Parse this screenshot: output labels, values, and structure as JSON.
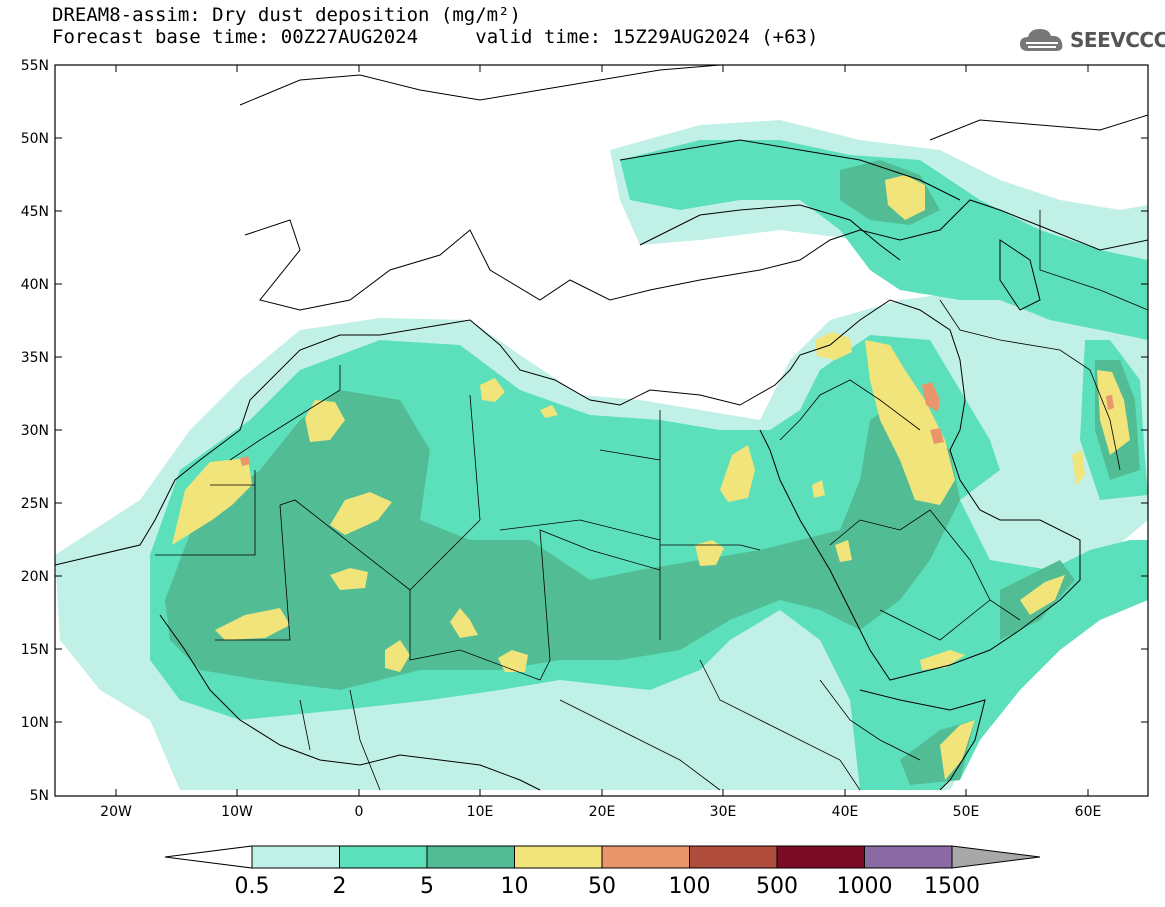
{
  "header": {
    "title_line": "DREAM8-assim: Dry dust deposition (mg/m²)",
    "base_time": "Forecast base time: 00Z27AUG2024",
    "valid_time": "valid time: 15Z29AUG2024 (+63)"
  },
  "logo": {
    "text": "SEEVCCC",
    "icon": "cloud-logo-icon"
  },
  "map": {
    "lat_labels": [
      "55N",
      "50N",
      "45N",
      "40N",
      "35N",
      "30N",
      "25N",
      "20N",
      "15N",
      "10N",
      "5N"
    ],
    "lon_labels": [
      "20W",
      "10W",
      "0",
      "10E",
      "20E",
      "30E",
      "40E",
      "50E",
      "60E"
    ],
    "extent": {
      "lon": [
        -25,
        65
      ],
      "lat": [
        5,
        55
      ]
    }
  },
  "legend": {
    "labels": [
      "0.5",
      "2",
      "5",
      "10",
      "50",
      "100",
      "500",
      "1000",
      "1500"
    ],
    "colors": [
      "#c1f0e6",
      "#5ce0bc",
      "#52bd95",
      "#f0e47a",
      "#e9966c",
      "#b04c3c",
      "#7b0c25",
      "#8b6aa4",
      "#a8a8a8"
    ]
  }
}
